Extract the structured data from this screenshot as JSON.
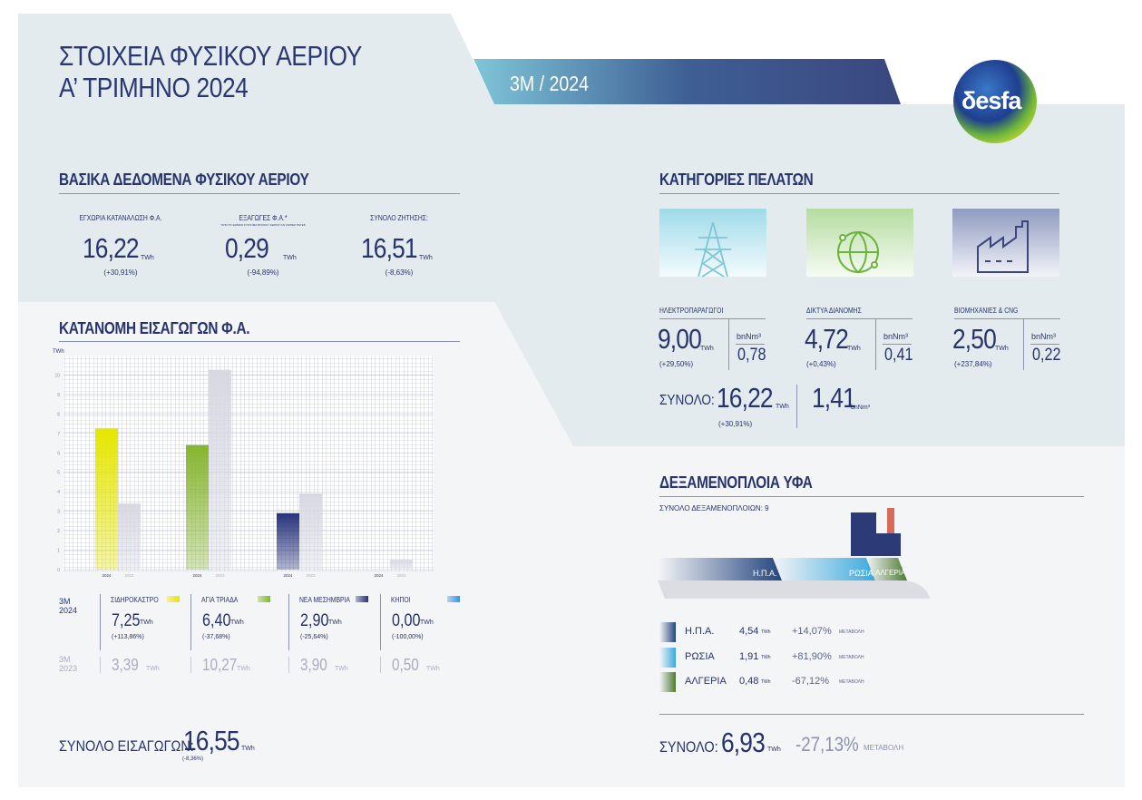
{
  "header": {
    "title": [
      "ΣΤΟΙΧΕΙΑ ΦΥΣΙΚΟΥ ΑΕΡΙΟΥ",
      "Α’ ΤΡΙΜΗΝΟ 2024"
    ],
    "period": "3Μ / 2024",
    "logo": "δesfa"
  },
  "basic": {
    "title": "ΒΑΣΙΚΑ ΔΕΔΟΜΕΝΑ ΦΥΣΙΚΟΥ ΑΕΡΙΟΥ",
    "unit": "TWh",
    "items": [
      {
        "label": "ΕΓΧΩΡΙΑ ΚΑΤΑΝΑΛΩΣΗ Φ.Α.",
        "value": "16,22",
        "change": "(+30,91%)"
      },
      {
        "label": "ΕΞΑΓΩΓΕΣ Φ.Α.*",
        "note": "*ΑΠΟ ΤΟ ΕΘΝΙΚΟ ΣΥΣΤΗΜΑ ΦΥΣΙΚΟΥ ΑΕΡΙΟΥ ΚΑΙ ΛΟΙΠΕΣ ΠΗΓΕΣ",
        "value": "0,29",
        "change": "(-94,89%)"
      },
      {
        "label": "ΣΥΝΟΛΟ ΖΗΤΗΣΗΣ:",
        "value": "16,51",
        "change": "(-8,63%)"
      }
    ]
  },
  "customers": {
    "title": "ΚΑΤΗΓΟΡΙΕΣ ΠΕΛΑΤΩΝ",
    "unit": "TWh",
    "volume_unit": "bnNm³",
    "items": [
      {
        "label": "ΗΛΕΚΤΡΟΠΑΡΑΓΩΓΟΙ",
        "value": "9,00",
        "change": "(+29,50%)",
        "volume": "0,78"
      },
      {
        "label": "ΔΙΚΤΥΑ ΔΙΑΝΟΜΗΣ",
        "value": "4,72",
        "change": "(+0,43%)",
        "volume": "0,41"
      },
      {
        "label": "ΒΙΟΜΗΧΑΝΙΕΣ & CNG",
        "value": "2,50",
        "change": "(+237,84%)",
        "volume": "0,22"
      }
    ],
    "total_label": "ΣΥΝΟΛΟ:",
    "total": "16,22",
    "total_change": "(+30,91%)",
    "total_volume": "1,41"
  },
  "imports": {
    "title": "ΚΑΤΑΝΟΜΗ ΕΙΣΑΓΩΓΩΝ Φ.Α.",
    "unit": "TWh",
    "row_labels": [
      [
        "3Μ",
        "2024"
      ],
      [
        "3Μ",
        "2023"
      ]
    ],
    "changes": [
      "(+113,86%)",
      "(-37,68%)",
      "(-25,64%)",
      "(-100,00%)"
    ],
    "chart_data": {
      "type": "bar",
      "y_label": "TWh",
      "categories": [
        "ΣΙΔΗΡΟΚΑΣΤΡΟ",
        "ΑΓΙΑ ΤΡΙΑΔΑ",
        "ΝΕΑ ΜΕΣΗΜΒΡΙΑ",
        "ΚΗΠΟΙ"
      ],
      "series": [
        {
          "name": "2024",
          "colors": [
            "#e6e600",
            "#86b52f",
            "#26337a",
            "#3b8fe3"
          ],
          "values": [
            7.25,
            6.4,
            2.9,
            0.0
          ],
          "value_labels": [
            "7,25",
            "6,40",
            "2,90",
            "0,00"
          ]
        },
        {
          "name": "2023",
          "color": "#d7d8e2",
          "values": [
            3.39,
            10.27,
            3.9,
            0.5
          ],
          "value_labels": [
            "3,39",
            "10,27",
            "3,90",
            "0,50"
          ]
        }
      ],
      "ylim": [
        0,
        11
      ],
      "yticks": [
        0,
        1,
        2,
        3,
        4,
        5,
        6,
        7,
        8,
        9,
        10
      ],
      "grid": true
    },
    "total_label": "ΣΥΝΟΛΟ ΕΙΣΑΓΩΓΩΝ:",
    "total": "16,55",
    "total_change": "(-8,36%)"
  },
  "lng": {
    "title": "ΔΕΞΑΜΕΝΟΠΛΟΙΑ ΥΦΑ",
    "count_label": "ΣΥΝΟΛΟ ΔΕΞΑΜΕΝΟΠΛΟΙΩΝ:",
    "count": "9",
    "unit": "TWh",
    "change_label": "ΜΕΤΑΒΟΛΗ",
    "origins": [
      {
        "name": "Η.Π.Α.",
        "value": "4,54",
        "change": "+14,07%"
      },
      {
        "name": "ΡΩΣΙΑ",
        "value": "1,91",
        "change": "+81,90%"
      },
      {
        "name": "ΑΛΓΕΡΙΑ",
        "value": "0,48",
        "change": "-67,12%"
      }
    ],
    "total_label": "ΣΥΝΟΛΟ:",
    "total": "6,93",
    "total_change": "-27,13%"
  }
}
